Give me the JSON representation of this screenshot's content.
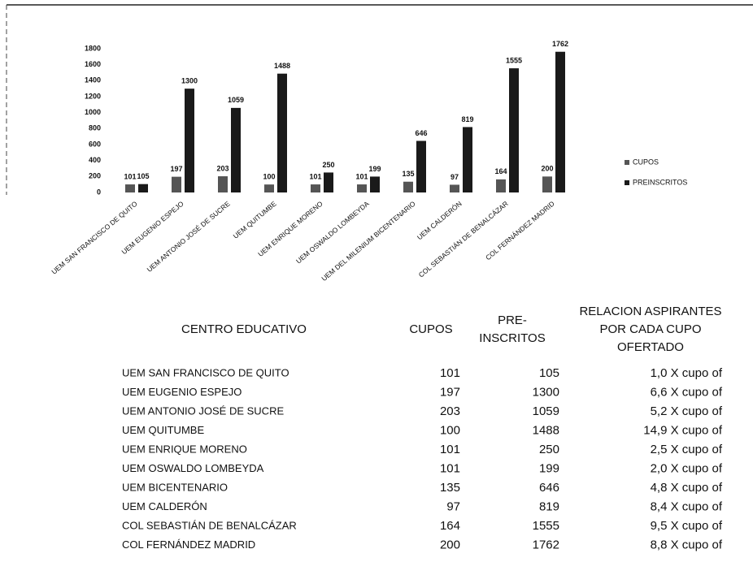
{
  "chart_data": {
    "type": "bar",
    "categories": [
      "UEM SAN FRANCISCO DE QUITO",
      "UEM EUGENIO ESPEJO",
      "UEM ANTONIO JOSÉ DE SUCRE",
      "UEM QUITUMBE",
      "UEM ENRIQUE MORENO",
      "UEM OSWALDO LOMBEYDA",
      "UEM DEL MILENIUM BICENTENARIO",
      "UEM CALDERÓN",
      "COL SEBASTIÁN DE BENALCÁZAR",
      "COL FERNÁNDEZ MADRID"
    ],
    "series": [
      {
        "name": "CUPOS",
        "color": "#555555",
        "values": [
          101,
          197,
          203,
          100,
          101,
          101,
          135,
          97,
          164,
          200
        ]
      },
      {
        "name": "PREINSCRITOS",
        "color": "#1a1a1a",
        "values": [
          105,
          1300,
          1059,
          1488,
          250,
          199,
          646,
          819,
          1555,
          1762
        ]
      }
    ],
    "ylim": [
      0,
      1800
    ],
    "yticks": [
      0,
      200,
      400,
      600,
      800,
      1000,
      1200,
      1400,
      1600,
      1800
    ],
    "legend": "right"
  },
  "table": {
    "header": [
      [
        "CENTRO EDUCATIVO"
      ],
      [
        "CUPOS"
      ],
      [
        "PRE-",
        "INSCRITOS"
      ],
      [
        "RELACION ASPIRANTES",
        "POR CADA CUPO",
        "OFERTADO"
      ]
    ],
    "rows": [
      [
        "UEM SAN FRANCISCO DE QUITO",
        "101",
        "105",
        "1,0 X cupo of"
      ],
      [
        "UEM EUGENIO ESPEJO",
        "197",
        "1300",
        "6,6 X cupo of"
      ],
      [
        "UEM ANTONIO JOSÉ DE SUCRE",
        "203",
        "1059",
        "5,2 X cupo of"
      ],
      [
        "UEM QUITUMBE",
        "100",
        "1488",
        "14,9 X cupo of"
      ],
      [
        "UEM ENRIQUE MORENO",
        "101",
        "250",
        "2,5 X cupo of"
      ],
      [
        "UEM OSWALDO LOMBEYDA",
        "101",
        "199",
        "2,0 X cupo of"
      ],
      [
        "UEM BICENTENARIO",
        "135",
        "646",
        "4,8 X cupo of"
      ],
      [
        "UEM CALDERÓN",
        "97",
        "819",
        "8,4 X cupo of"
      ],
      [
        "COL SEBASTIÁN DE BENALCÁZAR",
        "164",
        "1555",
        "9,5 X cupo of"
      ],
      [
        "COL FERNÁNDEZ MADRID",
        "200",
        "1762",
        "8,8 X cupo of"
      ]
    ]
  }
}
